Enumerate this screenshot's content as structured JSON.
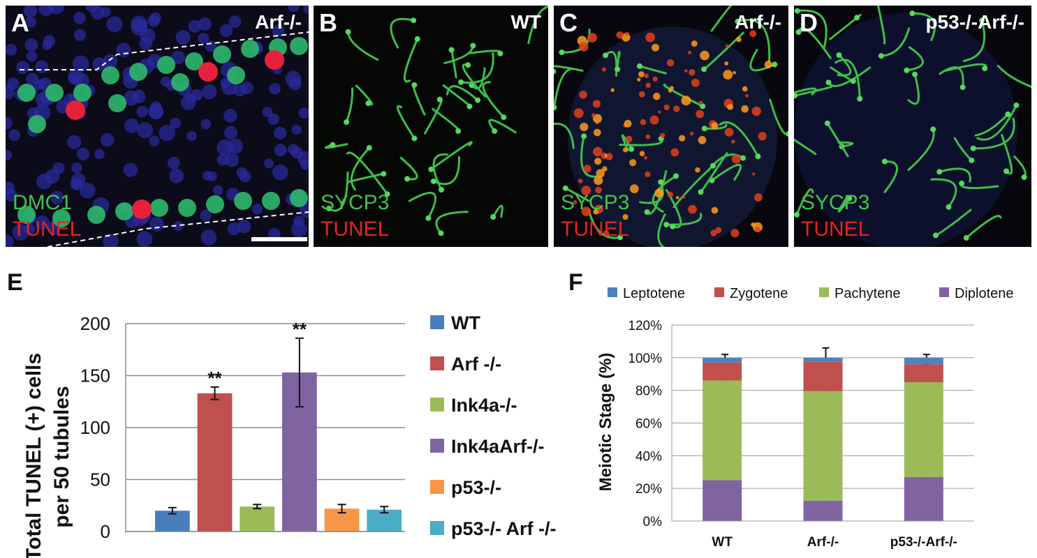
{
  "panels": [
    {
      "letter": "A",
      "genotype": "Arf-/-",
      "stain_green": "DMC1",
      "stain_red": "TUNEL"
    },
    {
      "letter": "B",
      "genotype": "WT",
      "stain_green": "SYCP3",
      "stain_red": "TUNEL"
    },
    {
      "letter": "C",
      "genotype": "Arf-/-",
      "stain_green": "SYCP3",
      "stain_red": "TUNEL"
    },
    {
      "letter": "D",
      "genotype": "p53-/-Arf-/-",
      "stain_green": "SYCP3",
      "stain_red": "TUNEL"
    }
  ],
  "chart_data": [
    {
      "label": "E",
      "type": "bar",
      "categories": [
        "WT",
        "Arf -/-",
        "Ink4a-/-",
        "Ink4aArf-/-",
        "p53-/-",
        "p53-/- Arf -/-"
      ],
      "values": [
        20,
        133,
        24,
        153,
        22,
        21
      ],
      "errors": [
        3,
        6,
        2,
        33,
        4,
        3
      ],
      "annotations": [
        "",
        "**",
        "",
        "**",
        "",
        ""
      ],
      "colors": [
        "#4a7ebb",
        "#c0504d",
        "#9bbb59",
        "#8064a2",
        "#f79646",
        "#4bacc6"
      ],
      "ylabel_line1": "Total TUNEL (+) cells",
      "ylabel_line2": "per 50 tubules",
      "yticks": [
        "0",
        "50",
        "100",
        "150",
        "200"
      ],
      "ylim": [
        0,
        200
      ],
      "grid": true,
      "legend_position": "right"
    },
    {
      "label": "F",
      "type": "bar",
      "stacked": true,
      "categories": [
        "WT",
        "Arf-/-",
        "p53-/-Arf-/-"
      ],
      "series": [
        {
          "name": "Diplotene",
          "color": "#8064a2",
          "values": [
            25,
            12.5,
            27
          ],
          "errors": [
            5,
            3,
            9
          ]
        },
        {
          "name": "Pachytene",
          "color": "#9bbb59",
          "values": [
            61,
            67,
            58
          ],
          "errors": [
            4,
            4,
            11
          ]
        },
        {
          "name": "Zygotene",
          "color": "#c0504d",
          "values": [
            11,
            18,
            11
          ],
          "errors": [
            0,
            0,
            0
          ]
        },
        {
          "name": "Leptotene",
          "color": "#4f81bd",
          "values": [
            3,
            2.5,
            4
          ],
          "errors": [
            2,
            6,
            2
          ]
        }
      ],
      "legend_order": [
        "Leptotene",
        "Zygotene",
        "Pachytene",
        "Diplotene"
      ],
      "ylabel": "Meiotic Stage (%)",
      "yticks": [
        "0%",
        "20%",
        "40%",
        "60%",
        "80%",
        "100%",
        "120%"
      ],
      "ylim": [
        0,
        120
      ],
      "grid": true,
      "legend_position": "top"
    }
  ]
}
